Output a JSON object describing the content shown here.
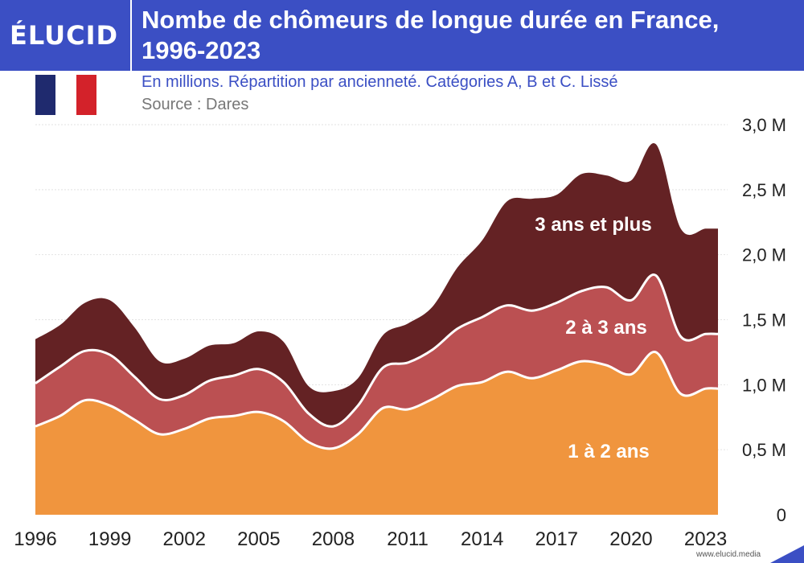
{
  "brand": {
    "logo": "ÉLUCID",
    "url": "www.elucid.media"
  },
  "header": {
    "title_line1": "Nombe de chômeurs de longue durée en France,",
    "title_line2": "1996-2023",
    "subtitle": "En millions. Répartition par ancienneté. Catégories A, B et C. Lissé",
    "source": "Source : Dares"
  },
  "flag": {
    "icon": "france-flag-icon",
    "colors": [
      "#1f2a6e",
      "#ffffff",
      "#d3222a"
    ]
  },
  "colors": {
    "header_bg": "#3b4fc4",
    "layer1": "#f0953e",
    "layer2": "#bb5052",
    "layer3": "#642224",
    "grid": "#e2e2e2",
    "axis_text": "#222222"
  },
  "chart_data": {
    "type": "area",
    "stacked": true,
    "x": [
      1996,
      1997,
      1998,
      1999,
      2000,
      2001,
      2002,
      2003,
      2004,
      2005,
      2006,
      2007,
      2008,
      2009,
      2010,
      2011,
      2012,
      2013,
      2014,
      2015,
      2016,
      2017,
      2018,
      2019,
      2020,
      2021,
      2022,
      2023
    ],
    "series": [
      {
        "name": "1 à 2 ans",
        "values": [
          0.68,
          0.76,
          0.88,
          0.84,
          0.73,
          0.62,
          0.66,
          0.74,
          0.76,
          0.79,
          0.72,
          0.56,
          0.51,
          0.62,
          0.82,
          0.81,
          0.89,
          0.99,
          1.02,
          1.1,
          1.05,
          1.11,
          1.18,
          1.15,
          1.08,
          1.25,
          0.93,
          0.97
        ]
      },
      {
        "name": "2 à 3 ans",
        "values": [
          0.33,
          0.38,
          0.38,
          0.39,
          0.33,
          0.27,
          0.26,
          0.29,
          0.31,
          0.33,
          0.3,
          0.22,
          0.17,
          0.22,
          0.31,
          0.36,
          0.38,
          0.44,
          0.5,
          0.51,
          0.52,
          0.52,
          0.54,
          0.6,
          0.57,
          0.59,
          0.44,
          0.42
        ]
      },
      {
        "name": "3 ans et plus",
        "values": [
          0.34,
          0.32,
          0.37,
          0.42,
          0.38,
          0.29,
          0.28,
          0.27,
          0.25,
          0.29,
          0.31,
          0.21,
          0.27,
          0.21,
          0.25,
          0.3,
          0.33,
          0.47,
          0.59,
          0.8,
          0.86,
          0.83,
          0.9,
          0.86,
          0.92,
          1.01,
          0.83,
          0.81
        ]
      }
    ],
    "series_labels": [
      "1 à 2 ans",
      "2 à 3 ans",
      "3 ans et plus"
    ],
    "xticks": [
      "1996",
      "1999",
      "2002",
      "2005",
      "2008",
      "2011",
      "2014",
      "2017",
      "2020",
      "2023"
    ],
    "xtick_values": [
      1996,
      1999,
      2002,
      2005,
      2008,
      2011,
      2014,
      2017,
      2020,
      2023
    ],
    "yticks": [
      "0",
      "0,5 M",
      "1,0 M",
      "1,5 M",
      "2,0 M",
      "2,5 M",
      "3,0 M"
    ],
    "ytick_values": [
      0,
      0.5,
      1.0,
      1.5,
      2.0,
      2.5,
      3.0
    ],
    "xlim": [
      1996,
      2023.5
    ],
    "ylim": [
      0,
      3.0
    ],
    "y_axis_side": "right",
    "grid": "horizontal dotted"
  }
}
